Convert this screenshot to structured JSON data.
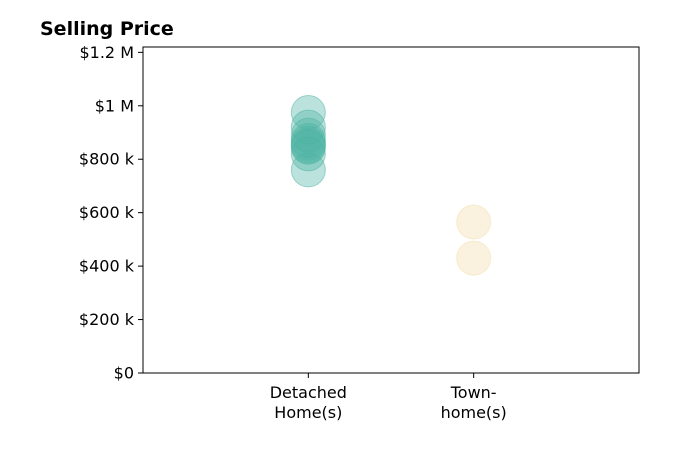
{
  "chart_data": {
    "type": "scatter",
    "title": "Selling Price",
    "xlabel": "",
    "ylabel": "",
    "categories": [
      {
        "lines": [
          "Detached",
          "Home(s)"
        ]
      },
      {
        "lines": [
          "Town-",
          "home(s)"
        ]
      }
    ],
    "y_ticks": [
      {
        "value": 0,
        "label": "$0"
      },
      {
        "value": 200000,
        "label": "$200 k"
      },
      {
        "value": 400000,
        "label": "$400 k"
      },
      {
        "value": 600000,
        "label": "$600 k"
      },
      {
        "value": 800000,
        "label": "$800 k"
      },
      {
        "value": 1000000,
        "label": "$1 M"
      },
      {
        "value": 1200000,
        "label": "$1.2 M"
      }
    ],
    "ylim": [
      0,
      1220000
    ],
    "xlim": [
      -1,
      2
    ],
    "grid": false,
    "series": [
      {
        "category_index": 0,
        "color": "#4db3a2",
        "values": [
          975000,
          920000,
          890000,
          870000,
          860000,
          850000,
          845000,
          820000,
          760000
        ]
      },
      {
        "category_index": 1,
        "color": "#f3dca8",
        "values": [
          565000,
          430000
        ]
      }
    ]
  }
}
